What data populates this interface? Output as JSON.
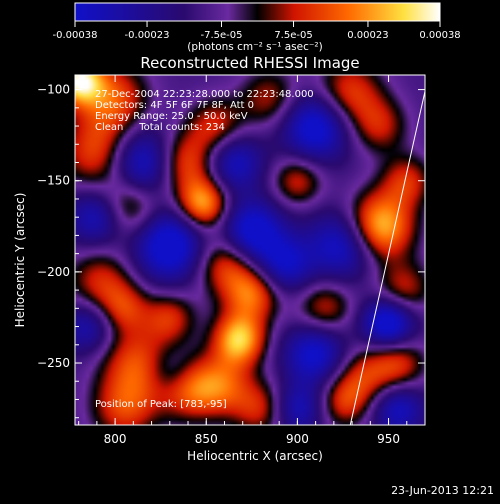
{
  "colors": {
    "background": "#000000",
    "text": "#ffffff",
    "colormap_stops": [
      "#1010c8",
      "#2a0a6e",
      "#6a2aa0",
      "#000000",
      "#d01400",
      "#ff6a00",
      "#ffe040",
      "#ffffff"
    ]
  },
  "colorbar": {
    "ticks": [
      "-0.00038",
      "-0.00023",
      "-7.5e-05",
      "7.5e-05",
      "0.00023",
      "0.00038"
    ],
    "units": "(photons cm⁻² s⁻¹ asec⁻²)",
    "range": [
      -0.00038,
      0.00038
    ]
  },
  "chart_data": {
    "type": "heatmap",
    "title": "Reconstructed RHESSI Image",
    "xlabel": "Heliocentric X (arcsec)",
    "ylabel": "Heliocentric Y (arcsec)",
    "xlim": [
      778,
      970
    ],
    "ylim": [
      -284,
      -92
    ],
    "x_ticks": [
      "800",
      "850",
      "900",
      "950"
    ],
    "y_ticks": [
      "-100",
      "-150",
      "-200",
      "-250"
    ],
    "annotations": [
      "27-Dec-2004 22:23:28.000 to 22:23:48.000",
      "Detectors: 4F 5F 6F 7F 8F, Att 0",
      "Energy Range: 25.0 - 50.0 keV",
      "Clean     Total counts: 234",
      "Position of Peak: [783,-95]"
    ],
    "limb_line": {
      "x": [
        929,
        972
      ],
      "y": [
        -284,
        -92
      ]
    },
    "blobs": [
      {
        "x": 780,
        "y": -95,
        "v": 1.0,
        "s": 9
      },
      {
        "x": 798,
        "y": -105,
        "v": 0.65,
        "s": 14
      },
      {
        "x": 790,
        "y": -135,
        "v": 0.6,
        "s": 14
      },
      {
        "x": 808,
        "y": -165,
        "v": 0.55,
        "s": 12
      },
      {
        "x": 792,
        "y": -205,
        "v": 0.5,
        "s": 13
      },
      {
        "x": 805,
        "y": -220,
        "v": 0.45,
        "s": 10
      },
      {
        "x": 830,
        "y": -225,
        "v": 0.5,
        "s": 10
      },
      {
        "x": 812,
        "y": -250,
        "v": 0.6,
        "s": 14
      },
      {
        "x": 805,
        "y": -275,
        "v": 0.55,
        "s": 13
      },
      {
        "x": 840,
        "y": -265,
        "v": 0.55,
        "s": 12
      },
      {
        "x": 838,
        "y": -140,
        "v": 0.65,
        "s": 12
      },
      {
        "x": 848,
        "y": -163,
        "v": 0.9,
        "s": 10
      },
      {
        "x": 855,
        "y": -120,
        "v": 0.5,
        "s": 11
      },
      {
        "x": 860,
        "y": -195,
        "v": 0.6,
        "s": 12
      },
      {
        "x": 875,
        "y": -212,
        "v": 0.7,
        "s": 11
      },
      {
        "x": 868,
        "y": -237,
        "v": 0.95,
        "s": 10
      },
      {
        "x": 858,
        "y": -262,
        "v": 0.6,
        "s": 12
      },
      {
        "x": 880,
        "y": -275,
        "v": 0.5,
        "s": 11
      },
      {
        "x": 885,
        "y": -105,
        "v": 0.45,
        "s": 12
      },
      {
        "x": 900,
        "y": -150,
        "v": 0.5,
        "s": 10
      },
      {
        "x": 928,
        "y": -102,
        "v": 0.6,
        "s": 13
      },
      {
        "x": 915,
        "y": -220,
        "v": 0.5,
        "s": 11
      },
      {
        "x": 935,
        "y": -258,
        "v": 0.5,
        "s": 12
      },
      {
        "x": 925,
        "y": -272,
        "v": 0.45,
        "s": 10
      },
      {
        "x": 945,
        "y": -120,
        "v": 0.45,
        "s": 11
      },
      {
        "x": 945,
        "y": -175,
        "v": 1.0,
        "s": 13
      },
      {
        "x": 960,
        "y": -150,
        "v": 0.5,
        "s": 10
      },
      {
        "x": 958,
        "y": -210,
        "v": 0.5,
        "s": 11
      },
      {
        "x": 955,
        "y": -250,
        "v": 0.55,
        "s": 11
      },
      {
        "x": 815,
        "y": -140,
        "v": -0.75,
        "s": 13
      },
      {
        "x": 830,
        "y": -185,
        "v": -0.85,
        "s": 14
      },
      {
        "x": 875,
        "y": -178,
        "v": -0.8,
        "s": 12
      },
      {
        "x": 865,
        "y": -140,
        "v": -0.6,
        "s": 11
      },
      {
        "x": 910,
        "y": -120,
        "v": -0.8,
        "s": 13
      },
      {
        "x": 925,
        "y": -185,
        "v": -0.7,
        "s": 13
      },
      {
        "x": 910,
        "y": -245,
        "v": -0.7,
        "s": 12
      },
      {
        "x": 900,
        "y": -275,
        "v": -0.55,
        "s": 10
      },
      {
        "x": 950,
        "y": -228,
        "v": -0.9,
        "s": 10
      },
      {
        "x": 955,
        "y": -275,
        "v": -0.6,
        "s": 10
      },
      {
        "x": 790,
        "y": -170,
        "v": -0.6,
        "s": 11
      },
      {
        "x": 785,
        "y": -230,
        "v": -0.5,
        "s": 10
      },
      {
        "x": 830,
        "y": -255,
        "v": -0.3,
        "s": 9
      },
      {
        "x": 893,
        "y": -196,
        "v": -0.6,
        "s": 11
      }
    ]
  },
  "footer": {
    "timestamp": "23-Jun-2013 12:21"
  }
}
